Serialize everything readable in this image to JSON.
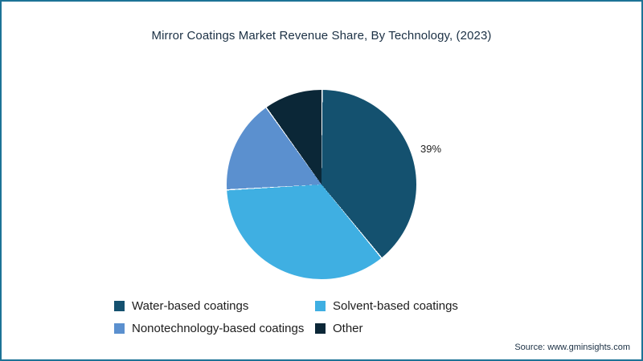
{
  "frame": {
    "border_color": "#1d7396",
    "background_color": "#ffffff"
  },
  "title": "Mirror Coatings Market Revenue Share, By Technology, (2023)",
  "source": "Source: www.gminsights.com",
  "chart_data": {
    "type": "pie",
    "title": "Mirror Coatings Market Revenue Share, By Technology, (2023)",
    "start_angle_deg": 0,
    "direction": "clockwise",
    "legend_position": "bottom",
    "slices": [
      {
        "label": "Water-based coatings",
        "value": 39,
        "color": "#14516f",
        "data_label": "39%"
      },
      {
        "label": "Solvent-based coatings",
        "value": 35,
        "color": "#3fafe2",
        "data_label": ""
      },
      {
        "label": "Nonotechnology-based coatings",
        "value": 16,
        "color": "#5b90cf",
        "data_label": ""
      },
      {
        "label": "Other",
        "value": 10,
        "color": "#0b2737",
        "data_label": ""
      }
    ],
    "annotations": [
      {
        "text": "39%",
        "slice": "Water-based coatings",
        "position": "outside-right"
      }
    ]
  }
}
